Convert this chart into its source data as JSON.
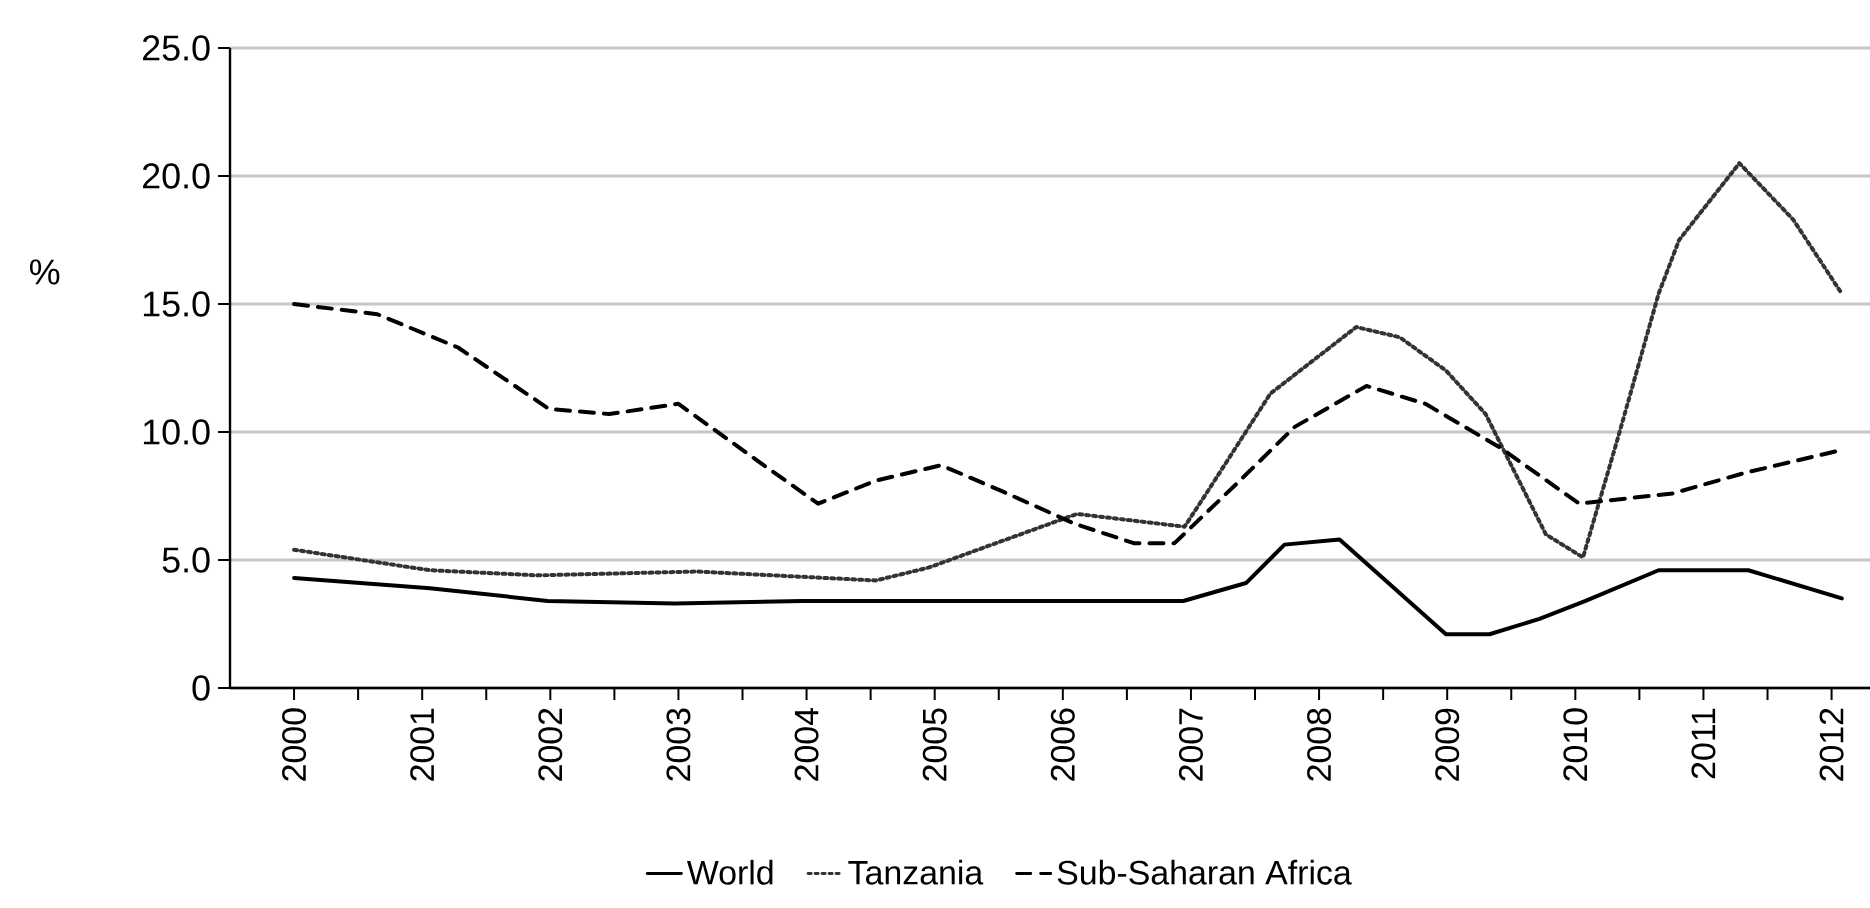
{
  "chart_data": {
    "type": "line",
    "ylabel": "%",
    "xlim": [
      1999.5,
      2012.3
    ],
    "ylim": [
      0,
      25
    ],
    "xticks": [
      {
        "value": 2000,
        "label": "2000"
      },
      {
        "value": 2001,
        "label": "2001"
      },
      {
        "value": 2002,
        "label": "2002"
      },
      {
        "value": 2003,
        "label": "2003"
      },
      {
        "value": 2004,
        "label": "2004"
      },
      {
        "value": 2005,
        "label": "2005"
      },
      {
        "value": 2006,
        "label": "2006"
      },
      {
        "value": 2007,
        "label": "2007"
      },
      {
        "value": 2008,
        "label": "2008"
      },
      {
        "value": 2009,
        "label": "2009"
      },
      {
        "value": 2010,
        "label": "2010"
      },
      {
        "value": 2011,
        "label": "2011"
      },
      {
        "value": 2012,
        "label": "2012"
      },
      {
        "value": 2000.5,
        "label": null
      },
      {
        "value": 2001.5,
        "label": null
      },
      {
        "value": 2002.5,
        "label": null
      },
      {
        "value": 2003.5,
        "label": null
      },
      {
        "value": 2004.5,
        "label": null
      },
      {
        "value": 2005.5,
        "label": null
      },
      {
        "value": 2006.5,
        "label": null
      },
      {
        "value": 2007.5,
        "label": null
      },
      {
        "value": 2008.5,
        "label": null
      },
      {
        "value": 2009.5,
        "label": null
      },
      {
        "value": 2010.5,
        "label": null
      },
      {
        "value": 2011.5,
        "label": null
      }
    ],
    "yticks": [
      0,
      {
        "value": 5,
        "label": "5.0"
      },
      {
        "value": 10,
        "label": "10.0"
      },
      {
        "value": 15,
        "label": "15.0"
      },
      {
        "value": 20,
        "label": "20.0"
      },
      {
        "value": 25,
        "label": "25.0"
      }
    ],
    "grid": "y",
    "legend": "bottom",
    "marker": "none",
    "series": [
      {
        "name": "World",
        "color": "#000000",
        "line_style": "solid",
        "x": [
          2000,
          2001.06,
          2001.98,
          2002.97,
          2003.97,
          2006.94,
          2007.43,
          2007.73,
          2008.16,
          2008.99,
          2009.33,
          2009.72,
          2010.08,
          2010.65,
          2011.35,
          2012.08
        ],
        "values": [
          4.3,
          3.9,
          3.4,
          3.3,
          3.4,
          3.4,
          4.1,
          5.6,
          5.8,
          2.1,
          2.1,
          2.7,
          3.4,
          4.6,
          4.6,
          3.5
        ]
      },
      {
        "name": "Tanzania",
        "color": "#333333",
        "line_style": "dotted",
        "x": [
          2000,
          2001.06,
          2001.9,
          2003.14,
          2004.54,
          2004.95,
          2006.11,
          2006.95,
          2007.12,
          2007.62,
          2008.29,
          2008.63,
          2008.99,
          2009.3,
          2009.56,
          2009.77,
          2010.06,
          2010.34,
          2010.65,
          2010.81,
          2011.28,
          2011.7,
          2012.08
        ],
        "values": [
          5.4,
          4.6,
          4.4,
          4.55,
          4.2,
          4.7,
          6.8,
          6.3,
          7.6,
          11.5,
          14.1,
          13.7,
          12.4,
          10.7,
          8.1,
          6.0,
          5.1,
          9.9,
          15.4,
          17.5,
          20.5,
          18.3,
          15.4
        ]
      },
      {
        "name": "Sub-Saharan Africa",
        "color": "#000000",
        "line_style": "dashed",
        "x": [
          2000,
          2000.65,
          2001.28,
          2001.99,
          2002.46,
          2003.0,
          2003.61,
          2004.09,
          2004.54,
          2005.05,
          2005.52,
          2006.1,
          2006.56,
          2006.87,
          2007.34,
          2007.81,
          2008.37,
          2008.83,
          2009.41,
          2010.03,
          2010.76,
          2011.32,
          2012.08
        ],
        "values": [
          15.0,
          14.6,
          13.3,
          10.9,
          10.7,
          11.1,
          8.9,
          7.2,
          8.1,
          8.7,
          7.7,
          6.4,
          5.65,
          5.65,
          7.9,
          10.2,
          11.8,
          11.1,
          9.4,
          7.2,
          7.6,
          8.4,
          9.3
        ]
      }
    ]
  }
}
